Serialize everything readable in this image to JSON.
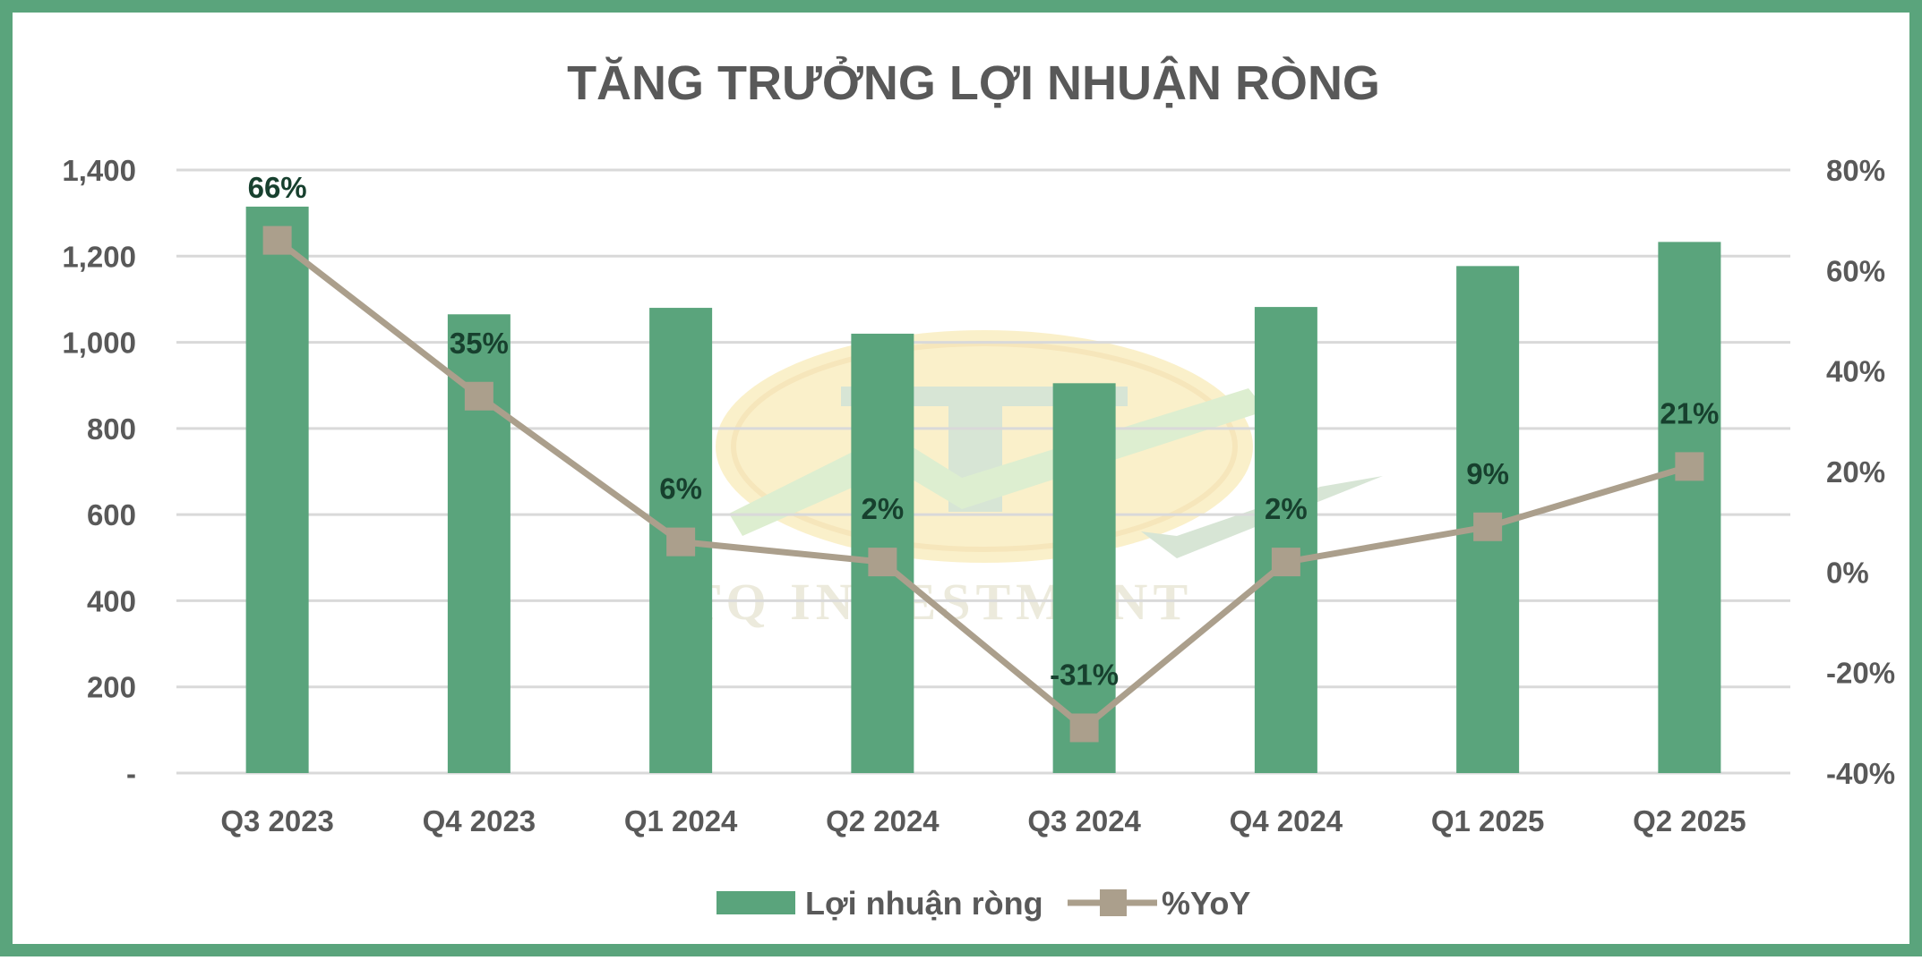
{
  "chart_data": {
    "type": "bar",
    "title": "TĂNG TRƯỞNG LỢI NHUẬN RÒNG",
    "categories": [
      "Q3 2023",
      "Q4 2023",
      "Q1 2024",
      "Q2 2024",
      "Q3 2024",
      "Q4 2024",
      "Q1 2025",
      "Q2 2025"
    ],
    "series": [
      {
        "name": "Lợi nhuận ròng",
        "type": "bar",
        "axis": "left",
        "color": "#5aa47c",
        "values": [
          1315,
          1065,
          1080,
          1020,
          905,
          1082,
          1177,
          1233
        ]
      },
      {
        "name": "%YoY",
        "type": "line",
        "axis": "right",
        "color": "#ab9f8c",
        "values": [
          66,
          35,
          6,
          2,
          -31,
          2,
          9,
          21
        ],
        "labels": [
          "66%",
          "35%",
          "6%",
          "2%",
          "-31%",
          "2%",
          "9%",
          "21%"
        ]
      }
    ],
    "ylim_left": [
      0,
      1400
    ],
    "yticks_left": [
      "-",
      "200",
      "400",
      "600",
      "800",
      "1,000",
      "1,200",
      "1,400"
    ],
    "ylim_right": [
      -40,
      80
    ],
    "yticks_right": [
      "-40%",
      "-20%",
      "0%",
      "20%",
      "40%",
      "60%",
      "80%"
    ],
    "grid": true,
    "legend_position": "bottom",
    "watermark": "TQ INVESTMENT"
  }
}
